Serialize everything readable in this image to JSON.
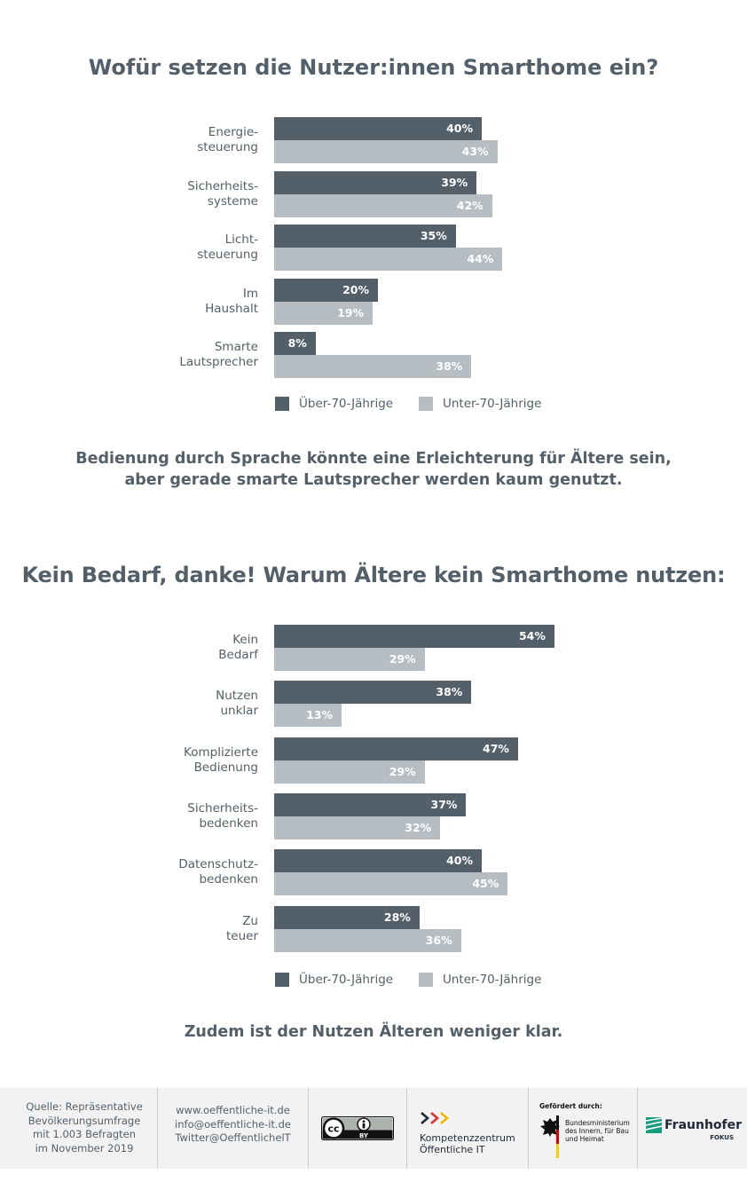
{
  "chart1": {
    "title": "Wofür setzen die Nutzer:innen Smarthome ein?",
    "caption_lines": [
      "Bedienung durch Sprache könnte eine Erleichterung für Ältere sein,",
      "aber gerade smarte Lautsprecher werden kaum genutzt."
    ]
  },
  "chart2": {
    "title": "Kein Bedarf, danke! Warum Ältere kein Smarthome nutzen:",
    "caption": "Zudem ist der Nutzen Älteren weniger klar."
  },
  "legend": {
    "over70": "Über-70-Jährige",
    "under70": "Unter-70-Jährige"
  },
  "colors": {
    "over70": "#53606a",
    "under70": "#b6bdc3",
    "text": "#53606a",
    "footer_bg": "#f2f2f2"
  },
  "chart_data": [
    {
      "type": "bar",
      "orientation": "horizontal",
      "title": "Wofür setzen die Nutzer:innen Smarthome ein?",
      "unit": "%",
      "categories": [
        [
          "Energie-",
          "steuerung"
        ],
        [
          "Sicherheits-",
          "systeme"
        ],
        [
          "Licht-",
          "steuerung"
        ],
        [
          "Im",
          "Haushalt"
        ],
        [
          "Smarte",
          "Lautsprecher"
        ]
      ],
      "series": [
        {
          "name": "Über-70-Jährige",
          "values": [
            40,
            39,
            35,
            20,
            8
          ],
          "color": "#53606a"
        },
        {
          "name": "Unter-70-Jährige",
          "values": [
            43,
            42,
            44,
            19,
            38
          ],
          "color": "#b6bdc3"
        }
      ],
      "xlim": [
        0,
        100
      ],
      "legend_position": "bottom",
      "grid": false
    },
    {
      "type": "bar",
      "orientation": "horizontal",
      "title": "Kein Bedarf, danke! Warum Ältere kein Smarthome nutzen:",
      "unit": "%",
      "categories": [
        [
          "Kein",
          "Bedarf"
        ],
        [
          "Nutzen",
          "unklar"
        ],
        [
          "Komplizierte",
          "Bedienung"
        ],
        [
          "Sicherheits-",
          "bedenken"
        ],
        [
          "Datenschutz-",
          "bedenken"
        ],
        [
          "Zu",
          "teuer"
        ]
      ],
      "series": [
        {
          "name": "Über-70-Jährige",
          "values": [
            54,
            38,
            47,
            37,
            40,
            28
          ],
          "color": "#53606a"
        },
        {
          "name": "Unter-70-Jährige",
          "values": [
            29,
            13,
            29,
            32,
            45,
            36
          ],
          "color": "#b6bdc3"
        }
      ],
      "xlim": [
        0,
        100
      ],
      "legend_position": "bottom",
      "grid": false
    }
  ],
  "footer": {
    "source_lines": [
      "Quelle: Repräsentative",
      "Bevölkerungsumfrage",
      "mit 1.003 Befragten",
      "im November 2019"
    ],
    "contact_lines": [
      "www.oeffentliche-it.de",
      "info@oeffentliche-it.de",
      "Twitter@OeffentlichelT"
    ],
    "license": {
      "cc": "cc",
      "by": "BY"
    },
    "kompetenz_lines": [
      "Kompetenzzentrum",
      "Öffentliche IT"
    ],
    "funding_label": "Gefördert durch:",
    "ministry_lines": [
      "Bundesministerium",
      "des Innern, für Bau",
      "und Heimat"
    ],
    "fraunhofer": {
      "name": "Fraunhofer",
      "sub": "FOKUS"
    }
  }
}
